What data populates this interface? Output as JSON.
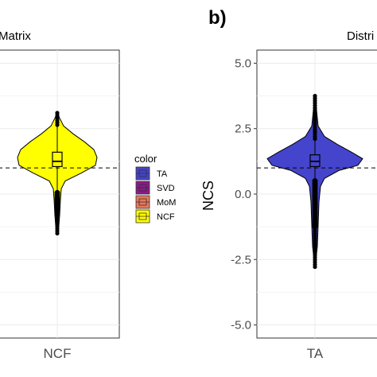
{
  "panel_letter": "b)",
  "chart_data": [
    {
      "type": "violin",
      "title": "Matrix",
      "categories": [
        "NCF"
      ],
      "ylim": [
        -5.5,
        5.5
      ],
      "reference_line": 1.0,
      "grid": true,
      "series": [
        {
          "name": "NCF",
          "color": "#ffff00",
          "box": {
            "q1": 1.05,
            "median": 1.25,
            "q3": 1.6
          },
          "whisker_low": 0.05,
          "whisker_high": 2.6,
          "min_outlier": -1.5,
          "max": 3.1
        }
      ]
    },
    {
      "type": "violin",
      "title": "Distri",
      "ylabel": "NCS",
      "categories": [
        "TA"
      ],
      "ylim": [
        -5.5,
        5.5
      ],
      "yticks": [
        "5.0",
        "2.5",
        "0.0",
        "-2.5",
        "-5.0"
      ],
      "reference_line": 1.0,
      "grid": true,
      "series": [
        {
          "name": "TA",
          "color": "#4444cc",
          "box": {
            "q1": 1.05,
            "median": 1.25,
            "q3": 1.5
          },
          "whisker_low": 0.5,
          "whisker_high": 2.1,
          "min_outlier": -2.8,
          "max": 3.75
        }
      ]
    }
  ],
  "legend": {
    "title": "color",
    "items": [
      {
        "label": "TA",
        "color": "#4444cc"
      },
      {
        "label": "SVD",
        "color": "#8b1a8b"
      },
      {
        "label": "MoM",
        "color": "#e8785a"
      },
      {
        "label": "NCF",
        "color": "#ffff00"
      }
    ]
  }
}
